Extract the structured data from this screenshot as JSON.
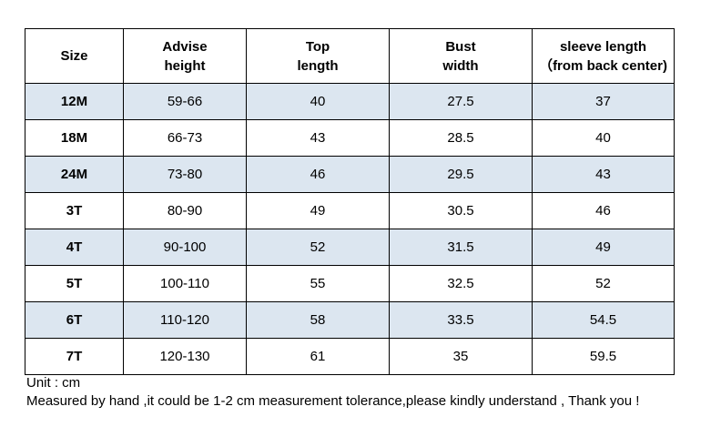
{
  "table": {
    "header": [
      [
        "Size"
      ],
      [
        "Advise",
        "height"
      ],
      [
        "Top",
        "length"
      ],
      [
        "Bust",
        "width"
      ],
      [
        "sleeve length",
        "（from back center)"
      ]
    ],
    "rows": [
      [
        "12M",
        "59-66",
        "40",
        "27.5",
        "37"
      ],
      [
        "18M",
        "66-73",
        "43",
        "28.5",
        "40"
      ],
      [
        "24M",
        "73-80",
        "46",
        "29.5",
        "43"
      ],
      [
        "3T",
        "80-90",
        "49",
        "30.5",
        "46"
      ],
      [
        "4T",
        "90-100",
        "52",
        "31.5",
        "49"
      ],
      [
        "5T",
        "100-110",
        "55",
        "32.5",
        "52"
      ],
      [
        "6T",
        "110-120",
        "58",
        "33.5",
        "54.5"
      ],
      [
        "7T",
        "120-130",
        "61",
        "35",
        "59.5"
      ]
    ]
  },
  "notes": [
    "Unit : cm",
    "Measured by hand ,it could be 1-2 cm measurement tolerance,please kindly understand , Thank you !"
  ]
}
